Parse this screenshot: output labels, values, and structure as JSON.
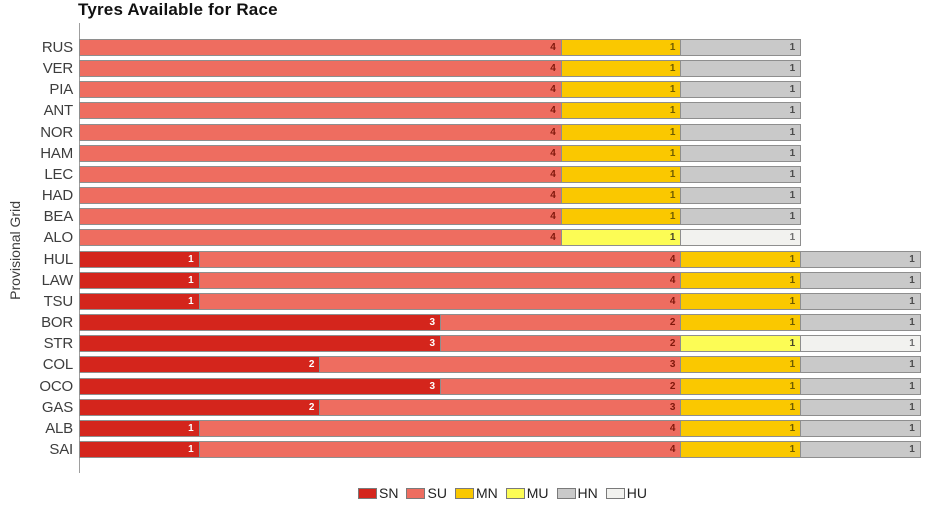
{
  "title": "Tyres Available for Race",
  "ylabel": "Provisional Grid",
  "colors": {
    "SN": "#d4251c",
    "SU": "#ee6d60",
    "MN": "#fac800",
    "MU": "#fcfc55",
    "HN": "#c9c9c9",
    "HU": "#f2f2ef",
    "segment_border": "#8e8e8e",
    "axis_spine": "#9e9e9e"
  },
  "label_colors": {
    "SN": "#ffffff",
    "SU": "#7f170b",
    "MN": "#6e5b00",
    "MU": "#45452a",
    "HN": "#4c4c4c",
    "HU": "#707070"
  },
  "chart_data": {
    "type": "bar",
    "orientation": "horizontal",
    "stacked": true,
    "title": "Tyres Available for Race",
    "xlabel": "",
    "ylabel": "Provisional Grid",
    "xlim": [
      0,
      7
    ],
    "grid": false,
    "legend_position": "bottom",
    "legend": [
      "SN",
      "SU",
      "MN",
      "MU",
      "HN",
      "HU"
    ],
    "value_labels": "inside-right",
    "categories": [
      "RUS",
      "VER",
      "PIA",
      "ANT",
      "NOR",
      "HAM",
      "LEC",
      "HAD",
      "BEA",
      "ALO",
      "HUL",
      "LAW",
      "TSU",
      "BOR",
      "STR",
      "COL",
      "OCO",
      "GAS",
      "ALB",
      "SAI"
    ],
    "series": [
      {
        "name": "SN",
        "values": [
          0,
          0,
          0,
          0,
          0,
          0,
          0,
          0,
          0,
          0,
          1,
          1,
          1,
          3,
          3,
          2,
          3,
          2,
          1,
          1
        ]
      },
      {
        "name": "SU",
        "values": [
          4,
          4,
          4,
          4,
          4,
          4,
          4,
          4,
          4,
          4,
          4,
          4,
          4,
          2,
          2,
          3,
          2,
          3,
          4,
          4
        ]
      },
      {
        "name": "MN",
        "values": [
          1,
          1,
          1,
          1,
          1,
          1,
          1,
          1,
          1,
          0,
          1,
          1,
          1,
          1,
          0,
          1,
          1,
          1,
          1,
          1
        ]
      },
      {
        "name": "MU",
        "values": [
          0,
          0,
          0,
          0,
          0,
          0,
          0,
          0,
          0,
          1,
          0,
          0,
          0,
          0,
          1,
          0,
          0,
          0,
          0,
          0
        ]
      },
      {
        "name": "HN",
        "values": [
          1,
          1,
          1,
          1,
          1,
          1,
          1,
          1,
          1,
          0,
          1,
          1,
          1,
          1,
          0,
          1,
          1,
          1,
          1,
          1
        ]
      },
      {
        "name": "HU",
        "values": [
          0,
          0,
          0,
          0,
          0,
          0,
          0,
          0,
          0,
          1,
          0,
          0,
          0,
          0,
          1,
          0,
          0,
          0,
          0,
          0
        ]
      }
    ]
  }
}
